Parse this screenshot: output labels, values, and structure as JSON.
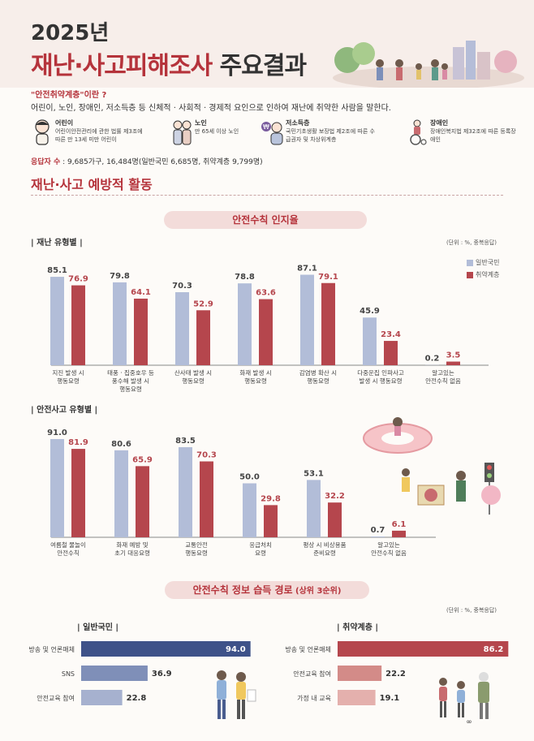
{
  "header": {
    "year": "2025년",
    "title_red": "재난·사고피해조사",
    "title_dark": "주요결과"
  },
  "definition": {
    "question": "\"안전취약계층\"이란 ?",
    "answer": "어린이, 노인, 장애인, 저소득층 등 신체적 · 사회적 · 경제적 요인으로 인하여 재난에 취약한 사람을 말한다."
  },
  "groups": [
    {
      "name": "어린이",
      "desc": "어린이안전관리에 관한 법률 제3조에 따른 만 13세 미만 어린이",
      "icon": "child-icon"
    },
    {
      "name": "노인",
      "desc": "만 65세 이상 노인",
      "icon": "elderly-icon"
    },
    {
      "name": "저소득층",
      "desc": "국민기초생활 보장법 제2조에 따른 수급권자 및 차상위계층",
      "icon": "low-income-icon"
    },
    {
      "name": "장애인",
      "desc": "장애인복지법 제32조에 따른 등록장애인",
      "icon": "wheelchair-icon"
    }
  ],
  "respondents": {
    "label": "응답자 수",
    "value": " : 9,685가구, 16,484명(일반국민 6,685명, 취약계층 9,799명)"
  },
  "section_title": "재난·사고 예방적 활동",
  "colors": {
    "general": "#b2bdd8",
    "vulnerable": "#b5464d",
    "accent": "#b5333b",
    "navy": "#3e5289",
    "pink": "#e2a8a5"
  },
  "awareness": {
    "pill": "안전수칙 인지율",
    "disaster_label": "| 재난 유형별 |",
    "accident_label": "| 안전사고 유형별 |",
    "unit": "(단위 : %, 중복응답)",
    "legend_general": "일반국민",
    "legend_vulnerable": "취약계층"
  },
  "chart_data": [
    {
      "type": "bar",
      "title": "재난 유형별",
      "categories": [
        "지진 발생 시\n행동요령",
        "태풍 · 집중호우 등\n풍수해 발생 시\n행동요령",
        "산사태 발생 시\n행동요령",
        "화재 발생 시\n행동요령",
        "감염병 확산 시\n행동요령",
        "다중운집 인파사고\n발생 시 행동요령",
        "알고있는\n안전수칙 없음"
      ],
      "series": [
        {
          "name": "일반국민",
          "values": [
            85.1,
            79.8,
            70.3,
            78.8,
            87.1,
            45.9,
            0.2
          ]
        },
        {
          "name": "취약계층",
          "values": [
            76.9,
            64.1,
            52.9,
            63.6,
            79.1,
            23.4,
            3.5
          ]
        }
      ],
      "ylim": [
        0,
        100
      ]
    },
    {
      "type": "bar",
      "title": "안전사고 유형별",
      "categories": [
        "여름철 물놀이\n안전수칙",
        "화재 예방 및\n초기 대응요령",
        "교통안전\n행동요령",
        "응급처치\n요령",
        "평상 시 비상용품\n준비요령",
        "알고있는\n안전수칙 없음"
      ],
      "series": [
        {
          "name": "일반국민",
          "values": [
            91.0,
            80.6,
            83.5,
            50.0,
            53.1,
            0.7
          ]
        },
        {
          "name": "취약계층",
          "values": [
            81.9,
            65.9,
            70.3,
            29.8,
            32.2,
            6.1
          ]
        }
      ],
      "ylim": [
        0,
        100
      ]
    },
    {
      "type": "bar",
      "orientation": "horizontal",
      "title": "일반국민",
      "categories": [
        "방송 및 언론매체",
        "SNS",
        "안전교육 참여"
      ],
      "values": [
        94.0,
        36.9,
        22.8
      ]
    },
    {
      "type": "bar",
      "orientation": "horizontal",
      "title": "취약계층",
      "categories": [
        "방송 및 언론매체",
        "안전교육 참여",
        "가정 내 교육"
      ],
      "values": [
        86.2,
        22.2,
        19.1
      ]
    }
  ],
  "sources": {
    "pill_main": "안전수칙 정보 습득 경로",
    "pill_sub": " (상위 3순위)",
    "unit": "(단위 : %, 중복응답)",
    "general_label": "| 일반국민 |",
    "vulnerable_label": "| 취약계층 |"
  }
}
